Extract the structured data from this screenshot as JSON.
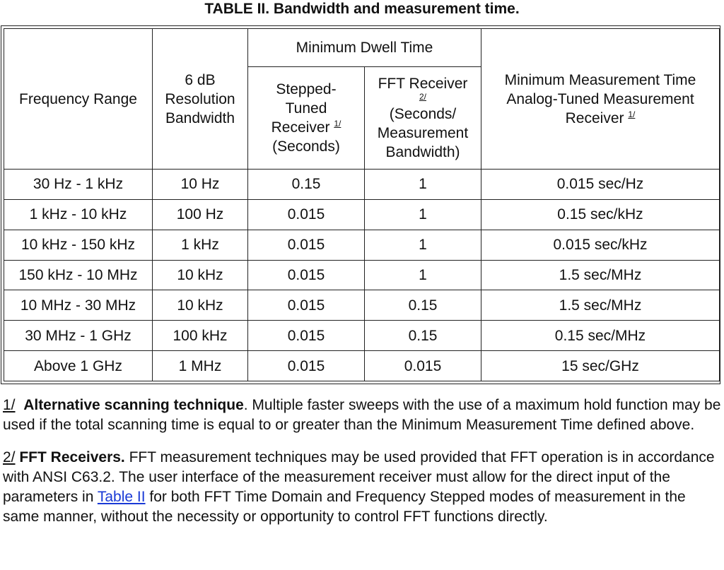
{
  "title": "TABLE II.  Bandwidth and measurement time.",
  "headers": {
    "frequency_range": "Frequency Range",
    "resolution_bw": [
      "6 dB",
      "Resolution",
      "Bandwidth"
    ],
    "dwell_group": "Minimum Dwell Time",
    "stepped": [
      "Stepped-",
      "Tuned",
      "Receiver",
      "(Seconds)"
    ],
    "stepped_fn": "1/",
    "fft_title": "FFT Receiver",
    "fft_fn": "2/",
    "fft_units": [
      "(Seconds/",
      "Measurement",
      "Bandwidth)"
    ],
    "analog": [
      "Minimum Measurement Time",
      "Analog-Tuned Measurement",
      "Receiver"
    ],
    "analog_fn": "1/"
  },
  "rows": [
    [
      "30 Hz - 1 kHz",
      "10 Hz",
      "0.15",
      "1",
      "0.015 sec/Hz"
    ],
    [
      "1 kHz - 10 kHz",
      "100 Hz",
      "0.015",
      "1",
      "0.15 sec/kHz"
    ],
    [
      "10 kHz - 150 kHz",
      "1 kHz",
      "0.015",
      "1",
      "0.015 sec/kHz"
    ],
    [
      "150 kHz - 10 MHz",
      "10 kHz",
      "0.015",
      "1",
      "1.5 sec/MHz"
    ],
    [
      "10 MHz - 30 MHz",
      "10 kHz",
      "0.015",
      "0.15",
      "1.5 sec/MHz"
    ],
    [
      "30 MHz - 1 GHz",
      "100 kHz",
      "0.015",
      "0.15",
      "0.15 sec/MHz"
    ],
    [
      "Above 1 GHz",
      "1 MHz",
      "0.015",
      "0.015",
      "15 sec/GHz"
    ]
  ],
  "notes": {
    "note1": {
      "num": "1/",
      "head": "Alternative scanning technique",
      "text": ".  Multiple faster sweeps with the use of a maximum hold function may be used if the total scanning time is equal to or greater than the Minimum Measurement Time defined above."
    },
    "note2": {
      "num": "2/",
      "head": "FFT Receivers.",
      "text_before": "  FFT measurement techniques may be used provided that FFT operation is in accordance with ANSI C63.2.  The user interface of the measurement receiver must allow for the direct input of the parameters in ",
      "link": "Table II",
      "text_after": " for both FFT Time Domain and Frequency Stepped modes of measurement in the same manner, without the necessity or opportunity to control FFT functions directly."
    }
  }
}
